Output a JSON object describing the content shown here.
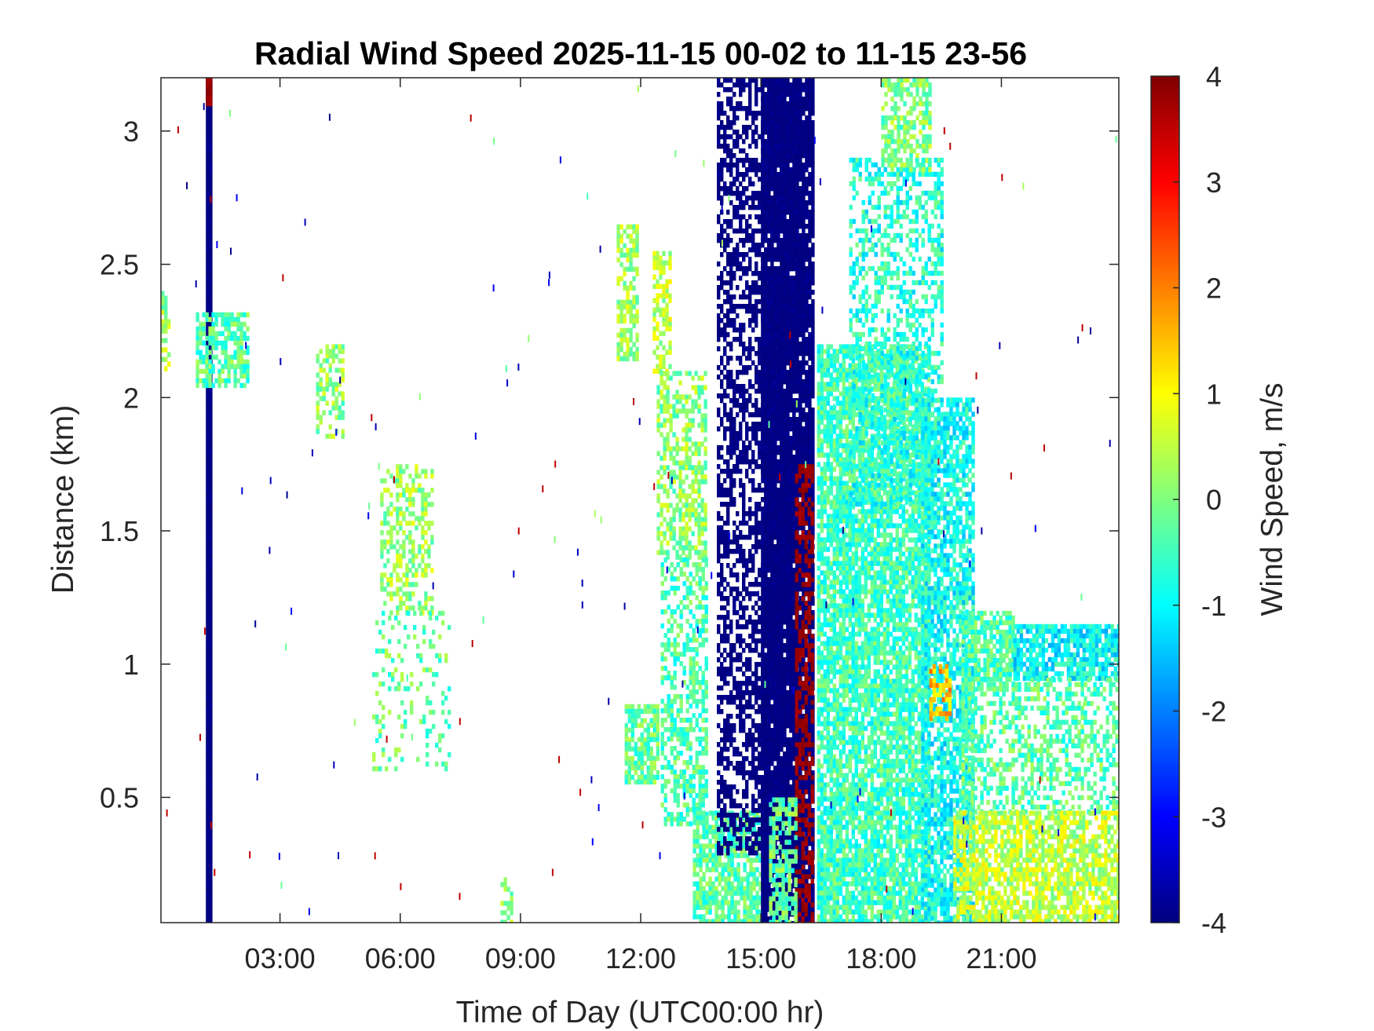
{
  "chart_data": {
    "type": "heatmap",
    "title": "Radial Wind Speed 2025-11-15 00-02 to 11-15 23-56",
    "xlabel": "Time of Day (UTC00:00 hr)",
    "ylabel": "Distance (km)",
    "colorbar_label": "Wind Speed, m/s",
    "xlim": [
      0.03,
      23.93
    ],
    "ylim": [
      0.03,
      3.2
    ],
    "clim": [
      -4,
      4
    ],
    "colormap": "jet",
    "x_ticks": [
      {
        "value": 3,
        "label": "03:00"
      },
      {
        "value": 6,
        "label": "06:00"
      },
      {
        "value": 9,
        "label": "09:00"
      },
      {
        "value": 12,
        "label": "12:00"
      },
      {
        "value": 15,
        "label": "15:00"
      },
      {
        "value": 18,
        "label": "18:00"
      },
      {
        "value": 21,
        "label": "21:00"
      }
    ],
    "y_ticks": [
      {
        "value": 0.5,
        "label": "0.5"
      },
      {
        "value": 1,
        "label": "1"
      },
      {
        "value": 1.5,
        "label": "1.5"
      },
      {
        "value": 2,
        "label": "2"
      },
      {
        "value": 2.5,
        "label": "2.5"
      },
      {
        "value": 3,
        "label": "3"
      }
    ],
    "colorbar_ticks": [
      {
        "value": 4,
        "label": "4"
      },
      {
        "value": 3,
        "label": "3"
      },
      {
        "value": 2,
        "label": "2"
      },
      {
        "value": 1,
        "label": "1"
      },
      {
        "value": 0,
        "label": "0"
      },
      {
        "value": -1,
        "label": "-1"
      },
      {
        "value": -2,
        "label": "-2"
      },
      {
        "value": -3,
        "label": "-3"
      },
      {
        "value": -4,
        "label": "-4"
      }
    ],
    "regions": [
      {
        "x0": 1.15,
        "x1": 1.28,
        "y0": 0.03,
        "y1": 3.2,
        "value": -4,
        "density": 1.0
      },
      {
        "x0": 1.15,
        "x1": 1.28,
        "y0": 3.1,
        "y1": 3.2,
        "value": 3.8,
        "density": 1.0
      },
      {
        "x0": 0.03,
        "x1": 0.2,
        "y0": 2.1,
        "y1": 2.4,
        "value": 0.2,
        "density": 0.6
      },
      {
        "x0": 0.9,
        "x1": 2.2,
        "y0": 2.05,
        "y1": 2.32,
        "value": -0.3,
        "density": 0.7
      },
      {
        "x0": 3.9,
        "x1": 4.6,
        "y0": 1.85,
        "y1": 2.2,
        "value": 0.1,
        "density": 0.5
      },
      {
        "x0": 5.5,
        "x1": 6.8,
        "y0": 1.2,
        "y1": 1.75,
        "value": 0.2,
        "density": 0.45
      },
      {
        "x0": 5.3,
        "x1": 7.2,
        "y0": 0.6,
        "y1": 1.2,
        "value": -0.2,
        "density": 0.15
      },
      {
        "x0": 8.5,
        "x1": 8.8,
        "y0": 0.03,
        "y1": 0.2,
        "value": 0.2,
        "density": 0.5
      },
      {
        "x0": 11.4,
        "x1": 11.9,
        "y0": 2.15,
        "y1": 2.65,
        "value": 0.3,
        "density": 0.6
      },
      {
        "x0": 12.3,
        "x1": 12.7,
        "y0": 2.1,
        "y1": 2.55,
        "value": 0.5,
        "density": 0.6
      },
      {
        "x0": 12.4,
        "x1": 13.6,
        "y0": 1.4,
        "y1": 2.1,
        "value": 0.1,
        "density": 0.55
      },
      {
        "x0": 11.6,
        "x1": 12.4,
        "y0": 0.55,
        "y1": 0.85,
        "value": -0.2,
        "density": 0.75
      },
      {
        "x0": 12.5,
        "x1": 13.6,
        "y0": 0.4,
        "y1": 1.4,
        "value": -0.4,
        "density": 0.5
      },
      {
        "x0": 13.3,
        "x1": 15.0,
        "y0": 0.03,
        "y1": 0.45,
        "value": -0.3,
        "density": 0.8
      },
      {
        "x0": 13.9,
        "x1": 15.9,
        "y0": 0.3,
        "y1": 3.2,
        "value": -4,
        "density": 0.55
      },
      {
        "x0": 15.0,
        "x1": 16.3,
        "y0": 0.03,
        "y1": 3.2,
        "value": -4,
        "density": 0.92
      },
      {
        "x0": 15.85,
        "x1": 16.25,
        "y0": 0.03,
        "y1": 1.75,
        "value": 3.8,
        "density": 0.55
      },
      {
        "x0": 15.2,
        "x1": 15.9,
        "y0": 0.03,
        "y1": 0.5,
        "value": -0.2,
        "density": 0.6
      },
      {
        "x0": 16.4,
        "x1": 19.2,
        "y0": 0.03,
        "y1": 2.2,
        "value": -0.5,
        "density": 0.8
      },
      {
        "x0": 17.2,
        "x1": 19.5,
        "y0": 1.6,
        "y1": 2.9,
        "value": -0.7,
        "density": 0.45
      },
      {
        "x0": 18.0,
        "x1": 19.2,
        "y0": 2.85,
        "y1": 3.2,
        "value": 0.0,
        "density": 0.6
      },
      {
        "x0": 19.0,
        "x1": 20.3,
        "y0": 0.03,
        "y1": 2.0,
        "value": -0.9,
        "density": 0.7
      },
      {
        "x0": 19.2,
        "x1": 19.7,
        "y0": 0.8,
        "y1": 1.0,
        "value": 1.5,
        "density": 0.6
      },
      {
        "x0": 20.0,
        "x1": 21.3,
        "y0": 0.9,
        "y1": 1.2,
        "value": -0.4,
        "density": 0.75
      },
      {
        "x0": 21.3,
        "x1": 23.93,
        "y0": 0.95,
        "y1": 1.15,
        "value": -1.0,
        "density": 0.8
      },
      {
        "x0": 20.0,
        "x1": 23.93,
        "y0": 0.45,
        "y1": 0.95,
        "value": -0.3,
        "density": 0.45
      },
      {
        "x0": 19.8,
        "x1": 23.93,
        "y0": 0.03,
        "y1": 0.45,
        "value": 0.5,
        "density": 0.75
      }
    ]
  }
}
